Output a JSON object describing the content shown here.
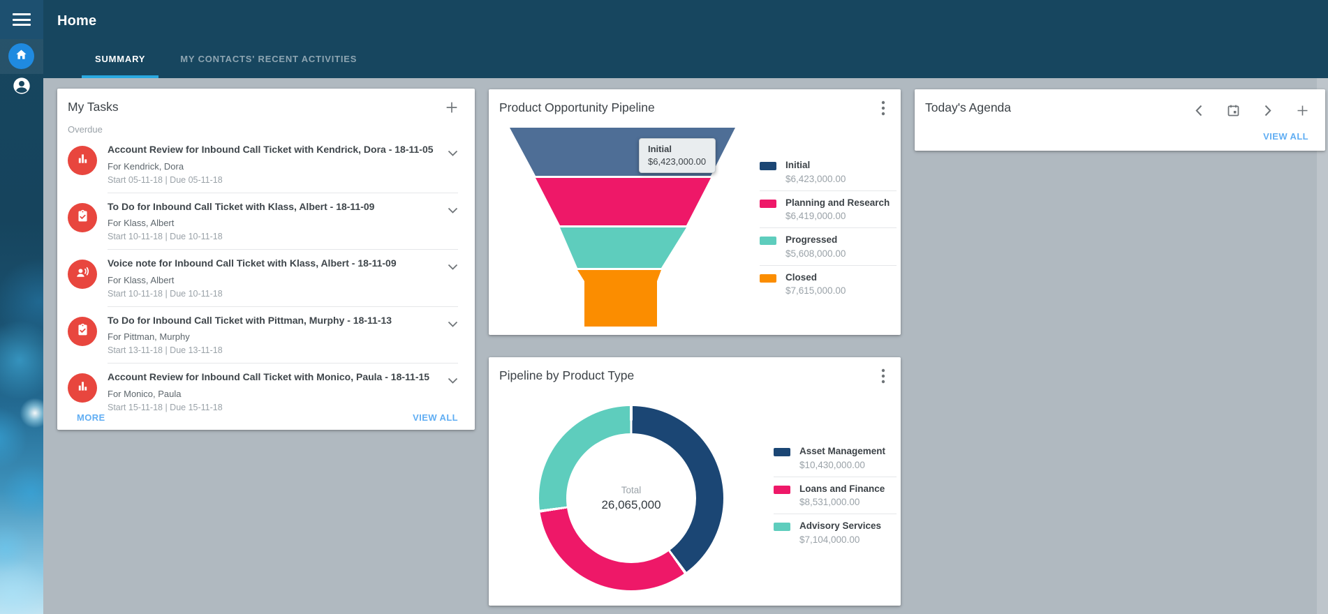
{
  "header": {
    "title": "Home",
    "tabs": [
      {
        "label": "SUMMARY",
        "active": true
      },
      {
        "label": "MY CONTACTS' RECENT ACTIVITIES",
        "active": false
      }
    ]
  },
  "sidebar": {
    "items": [
      {
        "icon": "home-icon",
        "active": true
      },
      {
        "icon": "person-icon",
        "active": false
      }
    ]
  },
  "theme": {
    "topbar_navy": "#17465f",
    "tab_underline_blue": "#2aa9e0",
    "link_blue": "#61aef3",
    "task_icon_red": "#e8463e",
    "content_background": "#b0b9c0"
  },
  "my_tasks": {
    "title": "My Tasks",
    "add_icon": "plus-icon",
    "group_label": "Overdue",
    "tasks": [
      {
        "icon": "bar-chart-icon",
        "title": "Account Review for Inbound Call Ticket with Kendrick, Dora - 18-11-05",
        "for": "For Kendrick, Dora",
        "dates": "Start 05-11-18 | Due 05-11-18"
      },
      {
        "icon": "clipboard-check-icon",
        "title": "To Do for Inbound Call Ticket with Klass, Albert - 18-11-09",
        "for": "For Klass, Albert",
        "dates": "Start 10-11-18 | Due 10-11-18"
      },
      {
        "icon": "voice-note-icon",
        "title": "Voice note for Inbound Call Ticket with Klass, Albert - 18-11-09",
        "for": "For Klass, Albert",
        "dates": "Start 10-11-18 | Due 10-11-18"
      },
      {
        "icon": "clipboard-check-icon",
        "title": "To Do for Inbound Call Ticket with Pittman, Murphy - 18-11-13",
        "for": "For Pittman, Murphy",
        "dates": "Start 13-11-18 | Due 13-11-18"
      },
      {
        "icon": "bar-chart-icon",
        "title": "Account Review for Inbound Call Ticket with Monico, Paula - 18-11-15",
        "for": "For Monico, Paula",
        "dates": "Start 15-11-18 | Due 15-11-18"
      }
    ],
    "more_label": "MORE",
    "view_all_label": "VIEW ALL"
  },
  "funnel_card": {
    "title": "Product Opportunity Pipeline",
    "menu_icon": "kebab-menu-icon",
    "tooltip": {
      "label": "Initial",
      "value": "$6,423,000.00"
    },
    "legend": [
      {
        "label": "Initial",
        "value": "$6,423,000.00",
        "color": "#1b4674"
      },
      {
        "label": "Planning and Research",
        "value": "$6,419,000.00",
        "color": "#ee1868"
      },
      {
        "label": "Progressed",
        "value": "$5,608,000.00",
        "color": "#5ecdbd"
      },
      {
        "label": "Closed",
        "value": "$7,615,000.00",
        "color": "#fb8d00"
      }
    ]
  },
  "donut_card": {
    "title": "Pipeline by Product Type",
    "menu_icon": "kebab-menu-icon",
    "center_label": "Total",
    "center_value": "26,065,000",
    "legend": [
      {
        "label": "Asset Management",
        "value": "$10,430,000.00",
        "color": "#1b4674"
      },
      {
        "label": "Loans and Finance",
        "value": "$8,531,000.00",
        "color": "#ee1868"
      },
      {
        "label": "Advisory Services",
        "value": "$7,104,000.00",
        "color": "#5ecdbd"
      }
    ]
  },
  "agenda_card": {
    "title": "Today's Agenda",
    "icons": [
      "chevron-left-icon",
      "calendar-icon",
      "chevron-right-icon",
      "plus-icon"
    ],
    "view_all_label": "VIEW ALL"
  },
  "chart_data": [
    {
      "type": "funnel",
      "title": "Product Opportunity Pipeline",
      "categories": [
        "Initial",
        "Planning and Research",
        "Progressed",
        "Closed"
      ],
      "values": [
        6423000,
        6419000,
        5608000,
        7615000
      ],
      "value_labels": [
        "$6,423,000.00",
        "$6,419,000.00",
        "$5,608,000.00",
        "$7,615,000.00"
      ],
      "segment_colors": [
        "#4e6e96",
        "#ee1868",
        "#5ecdbd",
        "#fb8d00"
      ],
      "legend_colors": [
        "#1b4674",
        "#ee1868",
        "#5ecdbd",
        "#fb8d00"
      ],
      "tooltip": {
        "label": "Initial",
        "value": "$6,423,000.00"
      },
      "legend_position": "right"
    },
    {
      "type": "donut",
      "title": "Pipeline by Product Type",
      "categories": [
        "Asset Management",
        "Loans and Finance",
        "Advisory Services"
      ],
      "values": [
        10430000,
        8531000,
        7104000
      ],
      "value_labels": [
        "$10,430,000.00",
        "$8,531,000.00",
        "$7,104,000.00"
      ],
      "colors": [
        "#1b4674",
        "#ee1868",
        "#5ecdbd"
      ],
      "center_label": "Total",
      "center_value": 26065000,
      "legend_position": "right"
    }
  ]
}
